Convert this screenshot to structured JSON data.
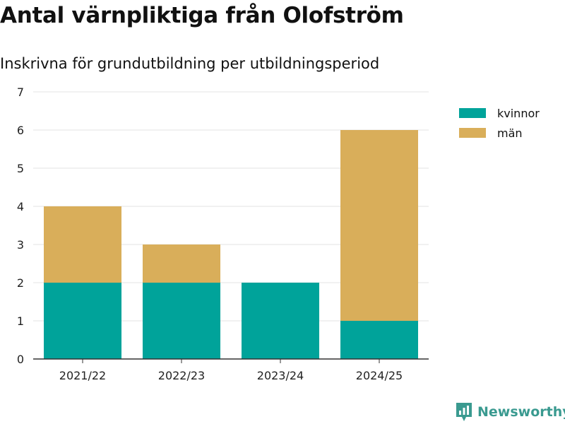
{
  "header": {
    "title": "Antal värnpliktiga från Olofström",
    "subtitle": "Inskrivna för grundutbildning per utbildningsperiod"
  },
  "colors": {
    "kvinnor": "#00a39a",
    "man": "#d9ae5a",
    "grid": "#e3e3e3",
    "axis": "#333333",
    "brand": "#3a9a90"
  },
  "brand": {
    "name": "Newsworthy",
    "icon": "chart-bubble-icon"
  },
  "chart_data": {
    "type": "bar",
    "stacked": true,
    "title": "Antal värnpliktiga från Olofström",
    "subtitle": "Inskrivna för grundutbildning per utbildningsperiod",
    "categories": [
      "2021/22",
      "2022/23",
      "2023/24",
      "2024/25"
    ],
    "series": [
      {
        "name": "kvinnor",
        "values": [
          2,
          2,
          2,
          1
        ]
      },
      {
        "name": "män",
        "values": [
          2,
          1,
          0,
          5
        ]
      }
    ],
    "yticks": [
      0,
      1,
      2,
      3,
      4,
      5,
      6,
      7
    ],
    "ylim": [
      0,
      7
    ],
    "xlabel": "",
    "ylabel": "",
    "grid": true,
    "legend": "top-right"
  }
}
